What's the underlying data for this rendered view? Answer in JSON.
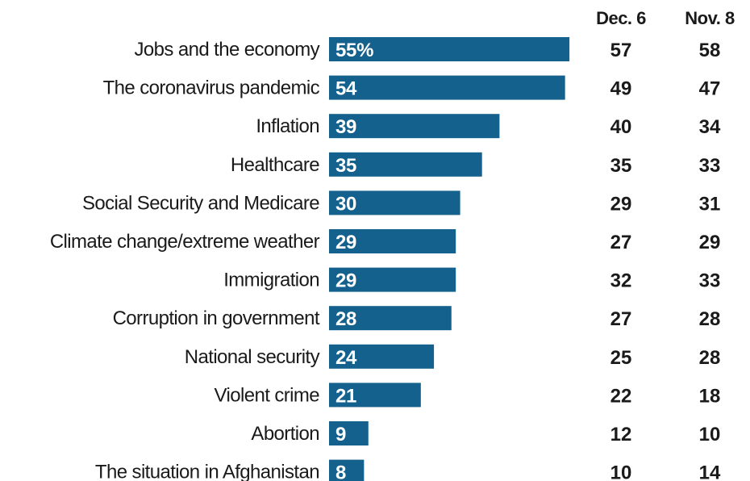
{
  "chart_data": {
    "type": "bar",
    "orientation": "horizontal",
    "bar_color": "#13618c",
    "categories": [
      "Jobs and the economy",
      "The coronavirus pandemic",
      "Inflation",
      "Healthcare",
      "Social Security and Medicare",
      "Climate change/extreme weather",
      "Immigration",
      "Corruption in government",
      "National security",
      "Violent crime",
      "Abortion",
      "The situation in Afghanistan"
    ],
    "values": [
      55,
      54,
      39,
      35,
      30,
      29,
      29,
      28,
      24,
      21,
      9,
      8
    ],
    "value_labels": [
      "55%",
      "54",
      "39",
      "35",
      "30",
      "29",
      "29",
      "28",
      "24",
      "21",
      "9",
      "8"
    ],
    "comparison_columns": [
      {
        "header": "Dec. 6",
        "values": [
          57,
          49,
          40,
          35,
          29,
          27,
          32,
          27,
          25,
          22,
          12,
          10
        ]
      },
      {
        "header": "Nov. 8",
        "values": [
          58,
          47,
          34,
          33,
          31,
          29,
          33,
          28,
          28,
          18,
          10,
          14
        ]
      }
    ]
  }
}
